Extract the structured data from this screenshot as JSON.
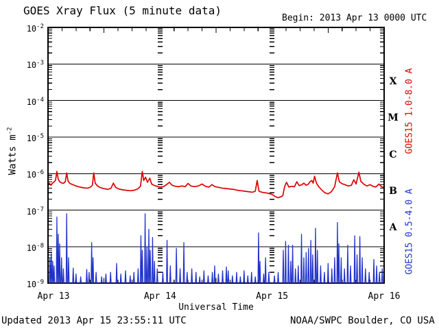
{
  "header": {
    "title": "GOES Xray Flux (5 minute data)",
    "begin_label": "Begin:  2013 Apr 13 0000 UTC"
  },
  "footer": {
    "updated": "Updated 2013 Apr 15 23:55:11 UTC",
    "source": "NOAA/SWPC Boulder, CO USA"
  },
  "chart_meta": {
    "xlabel": "Universal Time",
    "ylabel_base": "Watts m",
    "ylabel_exp": "-2",
    "right_labels": [
      {
        "text": "GOES15 1.0-8.0 A",
        "color": "#dd0000"
      },
      {
        "text": "GOES15 0.5-4.0 A",
        "color": "#2233cc"
      }
    ]
  },
  "colors": {
    "axis": "#000000",
    "background": "#ffffff",
    "long_band": "#dd0000",
    "short_band": "#2233cc"
  },
  "chart_data": {
    "type": "line",
    "title": "GOES Xray Flux (5 minute data)",
    "xlabel": "Universal Time",
    "ylabel": "Watts m^-2",
    "yscale": "log",
    "ylim": [
      1e-09,
      0.01
    ],
    "x_start_utc": "2013 Apr 13 0000 UTC",
    "x_hours_range": [
      0,
      72
    ],
    "x_minor_tick_hours": 3,
    "day_boundary_hours": [
      24,
      48
    ],
    "x_tick_labels": [
      {
        "hour": 0,
        "label": "Apr 13"
      },
      {
        "hour": 24,
        "label": "Apr 14"
      },
      {
        "hour": 48,
        "label": "Apr 15"
      },
      {
        "hour": 72,
        "label": "Apr 16"
      }
    ],
    "y_tick_exponents": [
      -2,
      -3,
      -4,
      -5,
      -6,
      -7,
      -8,
      -9
    ],
    "flare_classes": [
      {
        "label": "X",
        "decade_top": -3,
        "decade_bottom": -4
      },
      {
        "label": "M",
        "decade_top": -4,
        "decade_bottom": -5
      },
      {
        "label": "C",
        "decade_top": -5,
        "decade_bottom": -6
      },
      {
        "label": "B",
        "decade_top": -6,
        "decade_bottom": -7
      },
      {
        "label": "A",
        "decade_top": -7,
        "decade_bottom": -8
      }
    ],
    "series": [
      {
        "name": "GOES15 1.0-8.0 A",
        "color": "#dd0000",
        "style": "line",
        "points": [
          [
            0,
            5e-07
          ],
          [
            0.3,
            5.5e-07
          ],
          [
            0.6,
            4.8e-07
          ],
          [
            0.9,
            5.4e-07
          ],
          [
            1.2,
            5.8e-07
          ],
          [
            1.6,
            6.5e-07
          ],
          [
            1.9,
            1.15e-06
          ],
          [
            2.2,
            7e-07
          ],
          [
            2.5,
            6e-07
          ],
          [
            2.9,
            5.6e-07
          ],
          [
            3.3,
            5.4e-07
          ],
          [
            3.7,
            6e-07
          ],
          [
            4.0,
            1.05e-06
          ],
          [
            4.3,
            6.2e-07
          ],
          [
            4.7,
            5.4e-07
          ],
          [
            5.3,
            5e-07
          ],
          [
            6.0,
            4.6e-07
          ],
          [
            6.8,
            4.3e-07
          ],
          [
            7.6,
            4.1e-07
          ],
          [
            8.4,
            4e-07
          ],
          [
            9.0,
            4.2e-07
          ],
          [
            9.5,
            4.8e-07
          ],
          [
            9.8,
            1.05e-06
          ],
          [
            10.1,
            5.5e-07
          ],
          [
            10.6,
            4.6e-07
          ],
          [
            11.3,
            4.1e-07
          ],
          [
            12.0,
            3.9e-07
          ],
          [
            12.8,
            3.7e-07
          ],
          [
            13.5,
            4e-07
          ],
          [
            14.0,
            5.5e-07
          ],
          [
            14.5,
            4.2e-07
          ],
          [
            15.2,
            3.8e-07
          ],
          [
            16.0,
            3.6e-07
          ],
          [
            16.8,
            3.5e-07
          ],
          [
            17.6,
            3.4e-07
          ],
          [
            18.4,
            3.5e-07
          ],
          [
            19.2,
            3.8e-07
          ],
          [
            19.8,
            4.5e-07
          ],
          [
            20.2,
            1.15e-06
          ],
          [
            20.5,
            6.5e-07
          ],
          [
            20.9,
            8e-07
          ],
          [
            21.3,
            5.8e-07
          ],
          [
            21.8,
            7.5e-07
          ],
          [
            22.2,
            5.2e-07
          ],
          [
            22.7,
            4.8e-07
          ],
          [
            23.3,
            4.5e-07
          ],
          [
            24.0,
            4.3e-07
          ],
          [
            24.7,
            4.4e-07
          ],
          [
            25.4,
            5e-07
          ],
          [
            26.0,
            5.8e-07
          ],
          [
            26.6,
            4.8e-07
          ],
          [
            27.3,
            4.5e-07
          ],
          [
            28.0,
            4.4e-07
          ],
          [
            28.7,
            4.6e-07
          ],
          [
            29.4,
            4.4e-07
          ],
          [
            30.0,
            5.4e-07
          ],
          [
            30.6,
            4.6e-07
          ],
          [
            31.4,
            4.4e-07
          ],
          [
            32.2,
            4.6e-07
          ],
          [
            33.0,
            5.2e-07
          ],
          [
            33.7,
            4.5e-07
          ],
          [
            34.5,
            4.3e-07
          ],
          [
            35.1,
            5e-07
          ],
          [
            35.8,
            4.4e-07
          ],
          [
            36.6,
            4.2e-07
          ],
          [
            37.4,
            4e-07
          ],
          [
            38.2,
            3.9e-07
          ],
          [
            39.0,
            3.8e-07
          ],
          [
            39.8,
            3.7e-07
          ],
          [
            40.6,
            3.5e-07
          ],
          [
            41.4,
            3.4e-07
          ],
          [
            42.2,
            3.3e-07
          ],
          [
            43.0,
            3.2e-07
          ],
          [
            43.8,
            3.1e-07
          ],
          [
            44.4,
            3.3e-07
          ],
          [
            44.8,
            6.5e-07
          ],
          [
            45.2,
            3.3e-07
          ],
          [
            45.8,
            3.1e-07
          ],
          [
            46.5,
            3e-07
          ],
          [
            47.2,
            2.9e-07
          ],
          [
            48.0,
            2.7e-07
          ],
          [
            48.6,
            2.4e-07
          ],
          [
            49.2,
            2.2e-07
          ],
          [
            49.8,
            2.3e-07
          ],
          [
            50.3,
            2.5e-07
          ],
          [
            50.7,
            4.5e-07
          ],
          [
            51.1,
            5.8e-07
          ],
          [
            51.6,
            4.3e-07
          ],
          [
            52.2,
            4.5e-07
          ],
          [
            52.8,
            4.4e-07
          ],
          [
            53.3,
            6e-07
          ],
          [
            53.8,
            4.7e-07
          ],
          [
            54.4,
            5e-07
          ],
          [
            54.8,
            5.5e-07
          ],
          [
            55.3,
            4.8e-07
          ],
          [
            55.8,
            5.2e-07
          ],
          [
            56.1,
            6e-07
          ],
          [
            56.5,
            6.5e-07
          ],
          [
            56.8,
            5.5e-07
          ],
          [
            57.1,
            8.5e-07
          ],
          [
            57.5,
            5.5e-07
          ],
          [
            58.0,
            4.4e-07
          ],
          [
            58.6,
            3.6e-07
          ],
          [
            59.3,
            3e-07
          ],
          [
            60.0,
            2.8e-07
          ],
          [
            60.7,
            3.2e-07
          ],
          [
            61.4,
            4.4e-07
          ],
          [
            62.0,
            1.05e-06
          ],
          [
            62.4,
            6e-07
          ],
          [
            63.0,
            5.3e-07
          ],
          [
            63.6,
            5e-07
          ],
          [
            64.3,
            4.6e-07
          ],
          [
            65.0,
            4.8e-07
          ],
          [
            65.5,
            6.8e-07
          ],
          [
            66.0,
            5.2e-07
          ],
          [
            66.6,
            1.1e-06
          ],
          [
            67.0,
            6.2e-07
          ],
          [
            67.6,
            5.2e-07
          ],
          [
            68.3,
            4.6e-07
          ],
          [
            69.0,
            5e-07
          ],
          [
            69.6,
            4.5e-07
          ],
          [
            70.2,
            4.3e-07
          ],
          [
            70.9,
            5.2e-07
          ],
          [
            71.4,
            4.4e-07
          ],
          [
            72,
            4.2e-07
          ]
        ]
      },
      {
        "name": "GOES15 0.5-4.0 A",
        "color": "#2233cc",
        "style": "spikes",
        "baseline": 1.02e-09,
        "spike_halfwidth_hours": 0.12,
        "spikes": [
          [
            0.4,
            5e-09
          ],
          [
            0.7,
            6.5e-09
          ],
          [
            1.0,
            4e-09
          ],
          [
            1.3,
            3e-09
          ],
          [
            1.9,
            6.5e-08
          ],
          [
            2.2,
            2.2e-08
          ],
          [
            2.5,
            1.2e-08
          ],
          [
            2.9,
            5e-09
          ],
          [
            3.3,
            2.5e-09
          ],
          [
            4.0,
            8e-08
          ],
          [
            4.4,
            5e-09
          ],
          [
            5.4,
            2.6e-09
          ],
          [
            6.0,
            1.8e-09
          ],
          [
            7.0,
            1.5e-09
          ],
          [
            8.3,
            2.4e-09
          ],
          [
            8.8,
            2e-09
          ],
          [
            9.35,
            1.3e-08
          ],
          [
            9.65,
            5e-09
          ],
          [
            10.3,
            2e-09
          ],
          [
            11.5,
            1.5e-09
          ],
          [
            12.4,
            1.8e-09
          ],
          [
            13.4,
            2e-09
          ],
          [
            14.7,
            3.5e-09
          ],
          [
            15.6,
            1.8e-09
          ],
          [
            16.6,
            2.2e-09
          ],
          [
            17.6,
            1.6e-09
          ],
          [
            18.4,
            2e-09
          ],
          [
            19.3,
            2.5e-09
          ],
          [
            19.9,
            2e-08
          ],
          [
            20.2,
            8e-09
          ],
          [
            20.8,
            8e-08
          ],
          [
            21.2,
            1e-08
          ],
          [
            21.6,
            3e-08
          ],
          [
            21.9,
            8e-09
          ],
          [
            22.4,
            1.8e-08
          ],
          [
            22.8,
            4e-09
          ],
          [
            23.4,
            2.5e-09
          ],
          [
            24.6,
            2e-09
          ],
          [
            25.5,
            1.5e-08
          ],
          [
            26.2,
            3e-09
          ],
          [
            27.5,
            9e-09
          ],
          [
            28.3,
            2.5e-09
          ],
          [
            29.1,
            1.3e-08
          ],
          [
            29.8,
            2e-09
          ],
          [
            30.8,
            2.5e-09
          ],
          [
            31.7,
            2e-09
          ],
          [
            32.5,
            1.5e-09
          ],
          [
            33.4,
            2.2e-09
          ],
          [
            34.3,
            1.6e-09
          ],
          [
            35.2,
            2e-09
          ],
          [
            35.7,
            3e-09
          ],
          [
            36.5,
            1.8e-09
          ],
          [
            37.4,
            2.2e-09
          ],
          [
            38.2,
            2.8e-09
          ],
          [
            38.6,
            2.2e-09
          ],
          [
            39.5,
            1.6e-09
          ],
          [
            40.4,
            2e-09
          ],
          [
            41.2,
            1.5e-09
          ],
          [
            42.0,
            2.2e-09
          ],
          [
            42.8,
            1.6e-09
          ],
          [
            43.6,
            2e-09
          ],
          [
            44.4,
            1.5e-09
          ],
          [
            45.1,
            2.4e-08
          ],
          [
            45.4,
            4e-09
          ],
          [
            46.2,
            1.8e-09
          ],
          [
            46.6,
            5e-09
          ],
          [
            47.3,
            2e-09
          ],
          [
            48.5,
            1.6e-09
          ],
          [
            49.3,
            2e-09
          ],
          [
            50.4,
            8e-09
          ],
          [
            50.9,
            1.4e-08
          ],
          [
            51.5,
            1.1e-08
          ],
          [
            52.0,
            4e-09
          ],
          [
            52.4,
            1.1e-08
          ],
          [
            53.0,
            2.5e-09
          ],
          [
            53.6,
            3e-09
          ],
          [
            54.3,
            2.2e-08
          ],
          [
            54.8,
            5e-09
          ],
          [
            55.3,
            7e-09
          ],
          [
            55.8,
            9e-09
          ],
          [
            56.3,
            1.5e-08
          ],
          [
            56.7,
            6e-09
          ],
          [
            57.3,
            3.2e-08
          ],
          [
            57.7,
            8e-09
          ],
          [
            58.4,
            3e-09
          ],
          [
            59.2,
            2e-09
          ],
          [
            60.0,
            3.5e-09
          ],
          [
            60.8,
            2.5e-09
          ],
          [
            61.4,
            5e-09
          ],
          [
            62.0,
            4.6e-08
          ],
          [
            62.3,
            1.2e-08
          ],
          [
            62.8,
            5e-09
          ],
          [
            63.5,
            2.5e-09
          ],
          [
            64.2,
            1.1e-08
          ],
          [
            64.8,
            3e-09
          ],
          [
            65.7,
            2e-08
          ],
          [
            66.2,
            6e-09
          ],
          [
            66.8,
            1.9e-08
          ],
          [
            67.3,
            5e-09
          ],
          [
            68.0,
            2.5e-09
          ],
          [
            68.8,
            2e-09
          ],
          [
            69.8,
            4.5e-09
          ],
          [
            70.4,
            3e-09
          ],
          [
            71.0,
            2e-09
          ],
          [
            71.6,
            2.5e-09
          ]
        ]
      }
    ]
  }
}
